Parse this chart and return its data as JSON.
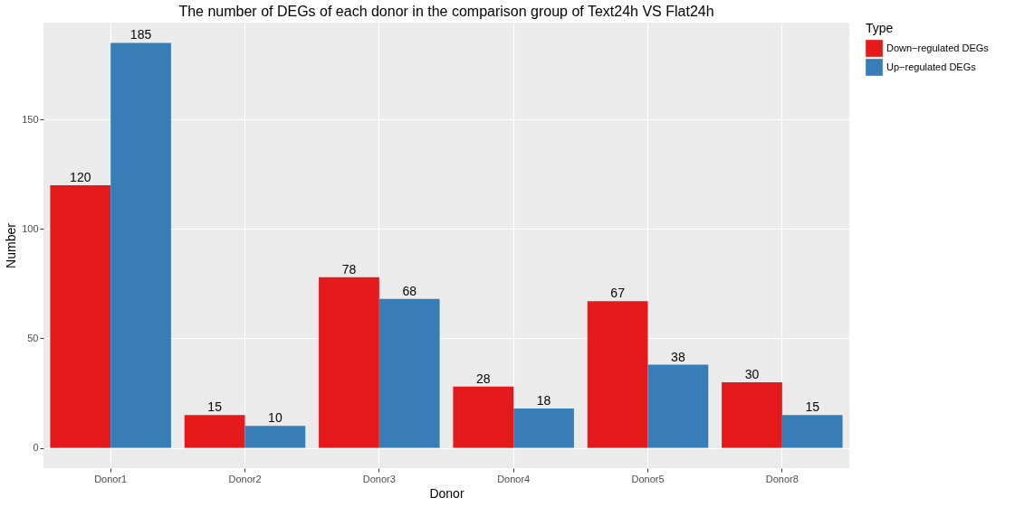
{
  "chart_data": {
    "type": "bar",
    "title": "The number of DEGs of each donor in the comparison group of Text24h VS Flat24h",
    "xlabel": "Donor",
    "ylabel": "Number",
    "legend_title": "Type",
    "categories": [
      "Donor1",
      "Donor2",
      "Donor3",
      "Donor4",
      "Donor5",
      "Donor8"
    ],
    "series": [
      {
        "name": "Down−regulated DEGs",
        "color": "#e41a1c",
        "values": [
          120,
          15,
          78,
          28,
          67,
          30
        ]
      },
      {
        "name": "Up−regulated DEGs",
        "color": "#377eb8",
        "values": [
          185,
          10,
          68,
          18,
          38,
          15
        ]
      }
    ],
    "ylim": [
      -9.25,
      194.25
    ],
    "yticks": [
      0,
      50,
      100,
      150
    ],
    "grid": true,
    "legend": "right",
    "data_labels": true
  }
}
